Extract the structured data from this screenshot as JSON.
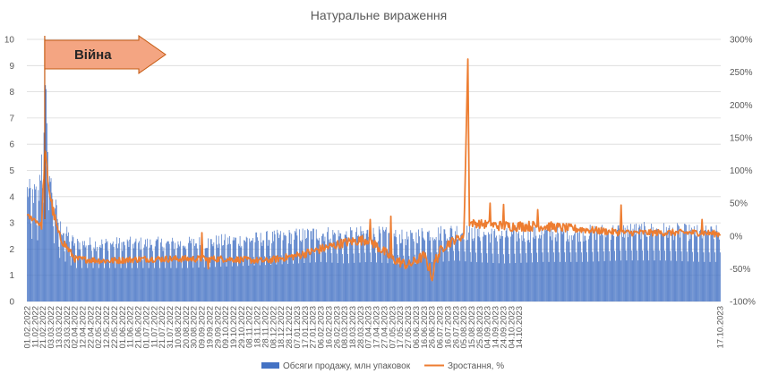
{
  "chart_data": {
    "type": "bar",
    "title": "Натуральне вираження",
    "xlabel": "",
    "ylabel": "",
    "ylim": [
      0,
      10
    ],
    "y2lim": [
      -100,
      300
    ],
    "y_ticks": [
      "0",
      "1",
      "2",
      "3",
      "4",
      "5",
      "6",
      "7",
      "8",
      "9",
      "10"
    ],
    "y2_ticks": [
      "-100%",
      "-50%",
      "0%",
      "50%",
      "100%",
      "150%",
      "200%",
      "250%",
      "300%"
    ],
    "grid": true,
    "legend_position": "bottom",
    "colors": {
      "bars": "#4472c4",
      "line": "#ed7d31",
      "annotation": "#f4a582",
      "annotation_border": "#c55a11"
    },
    "annotation": {
      "label": "Війна",
      "date_index": 20
    },
    "x_tick_labels": [
      "01.02.2022",
      "11.02.2022",
      "21.02.2022",
      "03.03.2022",
      "13.03.2022",
      "23.03.2022",
      "02.04.2022",
      "12.04.2022",
      "22.04.2022",
      "02.05.2022",
      "12.05.2022",
      "22.05.2022",
      "01.06.2022",
      "11.06.2022",
      "21.06.2022",
      "01.07.2022",
      "11.07.2022",
      "21.07.2022",
      "31.07.2022",
      "10.08.2022",
      "20.08.2022",
      "30.08.2022",
      "09.09.2022",
      "19.09.2022",
      "29.09.2022",
      "09.10.2022",
      "19.10.2022",
      "29.10.2022",
      "08.11.2022",
      "18.11.2022",
      "28.11.2022",
      "08.12.2022",
      "18.12.2022",
      "28.12.2022",
      "07.01.2023",
      "17.01.2023",
      "27.01.2023",
      "06.02.2023",
      "16.02.2023",
      "26.02.2023",
      "08.03.2023",
      "18.03.2023",
      "28.03.2023",
      "07.04.2023",
      "17.04.2023",
      "27.04.2023",
      "07.05.2023",
      "17.05.2023",
      "27.05.2023",
      "06.06.2023",
      "16.06.2023",
      "26.06.2023",
      "06.07.2023",
      "16.07.2023",
      "26.07.2023",
      "05.08.2023",
      "15.08.2023",
      "25.08.2023",
      "04.09.2023",
      "14.09.2023",
      "24.09.2023",
      "04.10.2023",
      "14.10.2023"
    ],
    "x_tick_labels_last": "17.10.2023",
    "series": [
      {
        "name": "Обсяги продажу, млн упаковок",
        "axis": "left",
        "type": "bar",
        "segments": [
          [
            0,
            4.2,
            0.25
          ],
          [
            15,
            4.0,
            0.3
          ],
          [
            20,
            6.5,
            0.6
          ],
          [
            24,
            8.1,
            0.3
          ],
          [
            29,
            4.6,
            0.4
          ],
          [
            40,
            2.9,
            0.35
          ],
          [
            60,
            2.2,
            0.3
          ],
          [
            100,
            2.2,
            0.3
          ],
          [
            150,
            2.2,
            0.3
          ],
          [
            200,
            2.2,
            0.3
          ],
          [
            250,
            2.3,
            0.3
          ],
          [
            300,
            2.4,
            0.3
          ],
          [
            340,
            2.5,
            0.3
          ],
          [
            370,
            2.6,
            0.35
          ],
          [
            400,
            2.5,
            0.35
          ],
          [
            430,
            2.6,
            0.35
          ],
          [
            460,
            2.5,
            0.35
          ],
          [
            480,
            2.4,
            0.35
          ],
          [
            500,
            2.6,
            0.4
          ],
          [
            520,
            2.6,
            0.4
          ],
          [
            540,
            2.7,
            0.4
          ],
          [
            560,
            2.6,
            0.35
          ],
          [
            600,
            2.5,
            0.35
          ],
          [
            650,
            2.6,
            0.35
          ],
          [
            700,
            2.6,
            0.35
          ],
          [
            750,
            2.7,
            0.35
          ],
          [
            800,
            2.7,
            0.35
          ],
          [
            850,
            2.6,
            0.35
          ],
          [
            873,
            2.6,
            0.35
          ]
        ]
      },
      {
        "name": "Зростання, %",
        "axis": "right",
        "type": "line",
        "segments": [
          [
            0,
            30,
            4
          ],
          [
            10,
            25,
            4
          ],
          [
            18,
            15,
            5
          ],
          [
            22,
            125,
            15
          ],
          [
            28,
            70,
            15
          ],
          [
            32,
            40,
            10
          ],
          [
            40,
            0,
            8
          ],
          [
            60,
            -35,
            5
          ],
          [
            100,
            -38,
            5
          ],
          [
            150,
            -35,
            5
          ],
          [
            200,
            -35,
            5
          ],
          [
            250,
            -35,
            5
          ],
          [
            300,
            -38,
            5
          ],
          [
            340,
            -30,
            6
          ],
          [
            370,
            -20,
            7
          ],
          [
            400,
            -10,
            7
          ],
          [
            430,
            -5,
            8
          ],
          [
            460,
            -35,
            8
          ],
          [
            480,
            -45,
            8
          ],
          [
            500,
            -30,
            8
          ],
          [
            510,
            -60,
            10
          ],
          [
            515,
            -35,
            10
          ],
          [
            525,
            -15,
            8
          ],
          [
            540,
            -5,
            6
          ],
          [
            550,
            0,
            6
          ],
          [
            555,
            270,
            0
          ],
          [
            557,
            20,
            6
          ],
          [
            600,
            15,
            8
          ],
          [
            650,
            15,
            8
          ],
          [
            700,
            10,
            6
          ],
          [
            750,
            5,
            5
          ],
          [
            800,
            5,
            5
          ],
          [
            850,
            5,
            5
          ],
          [
            873,
            3,
            5
          ]
        ]
      }
    ]
  },
  "legend": [
    {
      "label": "Обсяги продажу, млн упаковок",
      "swatch": "bar"
    },
    {
      "label": "Зростання, %",
      "swatch": "line"
    }
  ]
}
